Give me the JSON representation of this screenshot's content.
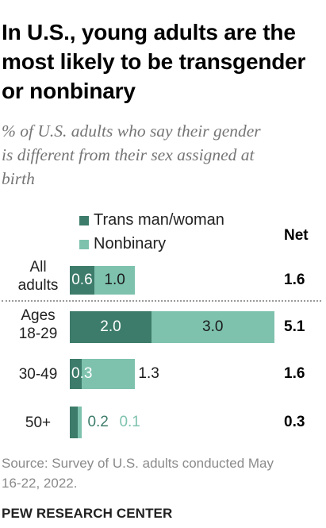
{
  "title": "In U.S., young adults are the most likely to be transgender or nonbinary",
  "subtitle_lines": [
    "% of U.S. adults who say their gender",
    "is different from their sex assigned at",
    "birth"
  ],
  "net_header": "Net",
  "source_lines": [
    "Source: Survey of U.S. adults conducted May",
    "16-22, 2022."
  ],
  "footer": "PEW RESEARCH CENTER",
  "colors": {
    "trans": "#3d7c6a",
    "nonbinary": "#7ec2ae",
    "trans_text": "#3d7c6a",
    "nonbinary_text": "#7ec2ae",
    "source": "#8a8a8a",
    "subtitle": "#757575"
  },
  "chart_data": {
    "type": "bar",
    "orientation": "horizontal",
    "stacked": true,
    "title": "In U.S., young adults are the most likely to be transgender or nonbinary",
    "subtitle": "% of U.S. adults who say their gender is different from their sex assigned at birth",
    "legend_position": "top",
    "grid": false,
    "xlim": [
      0,
      5.5
    ],
    "categories": [
      {
        "label_lines": [
          "All",
          "adults"
        ],
        "trans": 0.6,
        "nonbinary": 1.0,
        "net": "1.6",
        "trans_label": "0.6",
        "nonbinary_label": "1.0"
      },
      {
        "label_lines": [
          "Ages",
          "18-29"
        ],
        "trans": 2.0,
        "nonbinary": 3.0,
        "net": "5.1",
        "trans_label": "2.0",
        "nonbinary_label": "3.0"
      },
      {
        "label_lines": [
          "30-49"
        ],
        "trans": 0.3,
        "nonbinary": 1.3,
        "net": "1.6",
        "trans_label": "0.3",
        "nonbinary_label": "1.3"
      },
      {
        "label_lines": [
          "50+"
        ],
        "trans": 0.2,
        "nonbinary": 0.1,
        "net": "0.3",
        "trans_label": "0.2",
        "nonbinary_label": "0.1"
      }
    ],
    "series": [
      {
        "key": "trans",
        "name": "Trans man/woman"
      },
      {
        "key": "nonbinary",
        "name": "Nonbinary"
      }
    ]
  }
}
